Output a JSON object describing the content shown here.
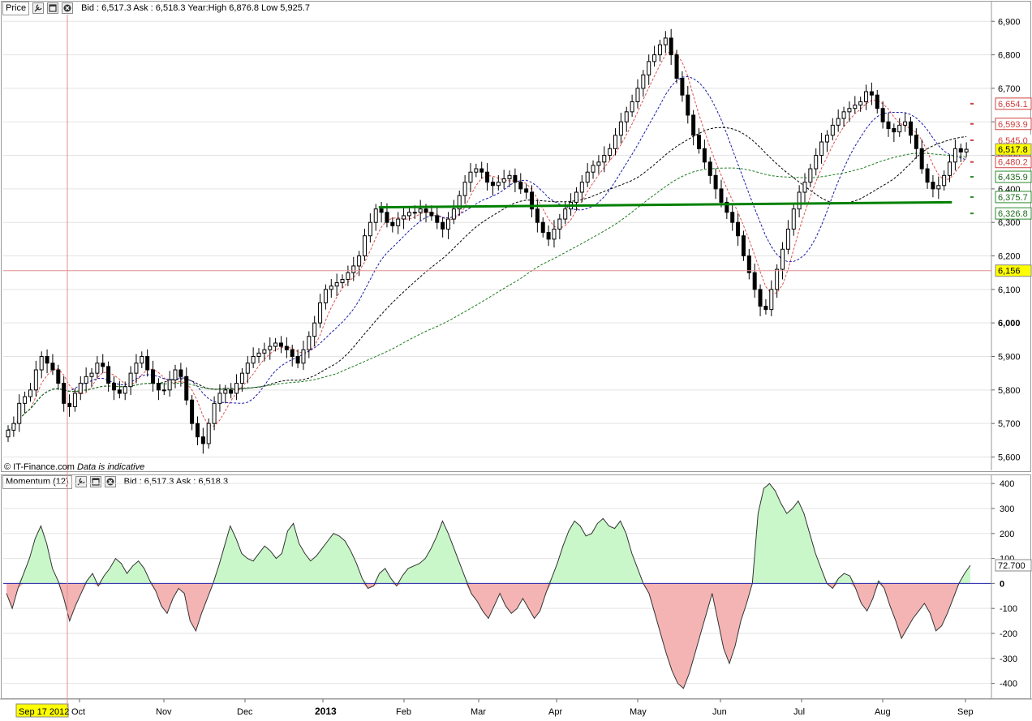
{
  "price_panel": {
    "title": "Price",
    "quote": "Bid : 6,517.3 Ask : 6,518.3 Year:High 6,876.8 Low 5,925.7",
    "copyright": "© IT-Finance.com",
    "disclaimer": "Data is indicative",
    "icons": [
      "wrench-icon",
      "window-icon",
      "close-icon"
    ]
  },
  "momentum_panel": {
    "title": "Momentum (12)",
    "quote": "Bid : 6,517.3 Ask : 6,518.3",
    "icons": [
      "wrench-icon",
      "window-icon",
      "close-icon"
    ]
  },
  "colors": {
    "candle_fill": "#000000",
    "ma_red": "#e0504a",
    "ma_blue": "#1a1aa8",
    "ma_black": "#000000",
    "ma_green": "#1a7a1a",
    "support_line": "#008000",
    "momentum_positive": "#c9f7c9",
    "momentum_negative": "#f4b4b4",
    "crosshair": "#e09090",
    "highlight_label": "#ffff00"
  },
  "chart_data": [
    {
      "type": "candlestick",
      "name": "Price",
      "ylim": [
        5560,
        6920
      ],
      "y_ticks": [
        "6,900",
        "6,800",
        "6,700",
        "6,600",
        "6,500",
        "6,400",
        "6,300",
        "6,200",
        "6,100",
        "6,000",
        "5,900",
        "5,800",
        "5,700",
        "5,600"
      ],
      "x_ticks": [
        "Oct",
        "Nov",
        "Dec",
        "2013",
        "Feb",
        "Mar",
        "Apr",
        "May",
        "Jun",
        "Jul",
        "Aug",
        "Sep"
      ],
      "cursor_date": "Sep 17 2012",
      "price_axis_labels": [
        {
          "text": "6,654.1",
          "style": "red-box"
        },
        {
          "text": "6,593.9",
          "style": "red-box"
        },
        {
          "text": "6,545.0",
          "style": "red"
        },
        {
          "text": "6,517.8",
          "style": "yellow"
        },
        {
          "text": "6,480.2",
          "style": "red-box"
        },
        {
          "text": "6,435.9",
          "style": "green-box"
        },
        {
          "text": "6,375.7",
          "style": "green-box"
        },
        {
          "text": "6,326.8",
          "style": "green-box"
        },
        {
          "text": "6,156",
          "style": "yellow"
        }
      ],
      "close_series": [
        5680,
        5700,
        5760,
        5780,
        5800,
        5860,
        5900,
        5880,
        5860,
        5820,
        5760,
        5750,
        5790,
        5820,
        5840,
        5850,
        5880,
        5870,
        5820,
        5800,
        5790,
        5810,
        5850,
        5880,
        5900,
        5860,
        5820,
        5800,
        5800,
        5830,
        5860,
        5840,
        5770,
        5700,
        5660,
        5640,
        5700,
        5760,
        5790,
        5800,
        5790,
        5820,
        5850,
        5880,
        5900,
        5910,
        5920,
        5930,
        5940,
        5930,
        5920,
        5900,
        5880,
        5920,
        5960,
        6000,
        6060,
        6100,
        6110,
        6120,
        6130,
        6150,
        6170,
        6200,
        6260,
        6300,
        6340,
        6330,
        6300,
        6290,
        6310,
        6320,
        6330,
        6330,
        6340,
        6330,
        6320,
        6300,
        6280,
        6310,
        6340,
        6380,
        6420,
        6450,
        6460,
        6450,
        6420,
        6410,
        6420,
        6430,
        6440,
        6420,
        6400,
        6390,
        6340,
        6300,
        6270,
        6250,
        6280,
        6310,
        6340,
        6360,
        6390,
        6420,
        6450,
        6470,
        6480,
        6500,
        6520,
        6560,
        6600,
        6630,
        6660,
        6700,
        6740,
        6780,
        6800,
        6830,
        6850,
        6800,
        6730,
        6680,
        6620,
        6560,
        6520,
        6480,
        6440,
        6400,
        6360,
        6330,
        6300,
        6260,
        6200,
        6150,
        6100,
        6050,
        6040,
        6100,
        6160,
        6220,
        6280,
        6340,
        6390,
        6420,
        6460,
        6500,
        6540,
        6560,
        6590,
        6610,
        6630,
        6640,
        6650,
        6660,
        6690,
        6680,
        6640,
        6600,
        6580,
        6570,
        6590,
        6600,
        6560,
        6520,
        6460,
        6420,
        6400,
        6410,
        6440,
        6480,
        6520,
        6510,
        6518
      ],
      "support_line": {
        "from": 6345,
        "to": 6360,
        "label": "horizontal support"
      }
    },
    {
      "type": "area",
      "name": "Momentum (12)",
      "ylim": [
        -450,
        420
      ],
      "y_ticks": [
        "400",
        "300",
        "200",
        "100",
        "0",
        "-100",
        "-200",
        "-300",
        "-400"
      ],
      "last_value": "72.700",
      "values": [
        -40,
        -100,
        -20,
        40,
        100,
        180,
        230,
        160,
        60,
        10,
        -60,
        -150,
        -90,
        -40,
        10,
        40,
        -10,
        30,
        60,
        100,
        80,
        40,
        70,
        90,
        60,
        10,
        -30,
        -90,
        -120,
        -60,
        -20,
        -40,
        -150,
        -190,
        -120,
        -60,
        0,
        70,
        150,
        230,
        180,
        120,
        100,
        90,
        120,
        150,
        130,
        100,
        120,
        210,
        240,
        160,
        120,
        90,
        110,
        140,
        170,
        200,
        190,
        170,
        130,
        80,
        20,
        -20,
        -10,
        40,
        60,
        20,
        -10,
        30,
        60,
        70,
        80,
        100,
        140,
        190,
        250,
        200,
        140,
        80,
        20,
        -40,
        -70,
        -110,
        -140,
        -90,
        -40,
        -90,
        -120,
        -100,
        -60,
        -100,
        -140,
        -110,
        -40,
        20,
        80,
        150,
        210,
        250,
        230,
        190,
        200,
        240,
        260,
        230,
        220,
        250,
        200,
        120,
        60,
        0,
        -40,
        -120,
        -200,
        -280,
        -350,
        -400,
        -420,
        -360,
        -280,
        -200,
        -120,
        -40,
        -150,
        -260,
        -320,
        -250,
        -150,
        -80,
        0,
        280,
        380,
        400,
        370,
        320,
        280,
        300,
        330,
        280,
        200,
        120,
        60,
        0,
        -20,
        20,
        40,
        30,
        -20,
        -80,
        -110,
        -60,
        10,
        -20,
        -90,
        -150,
        -220,
        -180,
        -140,
        -110,
        -80,
        -120,
        -190,
        -170,
        -120,
        -60,
        0,
        40,
        72.7
      ]
    }
  ]
}
